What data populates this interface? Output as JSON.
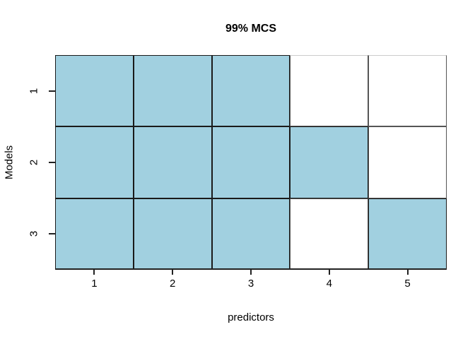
{
  "figure": {
    "background_color": "#ffffff",
    "text_color": "#000000"
  },
  "chart_data": {
    "type": "heatmap",
    "title": "99% MCS",
    "xlabel": "predictors",
    "ylabel": "Models",
    "x_tick_labels": [
      "1",
      "2",
      "3",
      "4",
      "5"
    ],
    "y_tick_labels": [
      "1",
      "2",
      "3"
    ],
    "matrix": [
      [
        1,
        1,
        1,
        0,
        0
      ],
      [
        1,
        1,
        1,
        1,
        0
      ],
      [
        1,
        1,
        1,
        0,
        1
      ]
    ],
    "cell_value_meaning": "1 = model/predictor combination included in 99% Model Confidence Set (filled), 0 = excluded (white)",
    "fill_color": "#A1D0E0",
    "empty_color": "#ffffff",
    "grid_line_color": "#1a1a1a",
    "axis_color": "#222222",
    "legend_position": "none",
    "grid": "cell-borders",
    "x_range": [
      0.5,
      5.5
    ],
    "y_range_top_to_bottom": [
      1,
      3
    ]
  }
}
